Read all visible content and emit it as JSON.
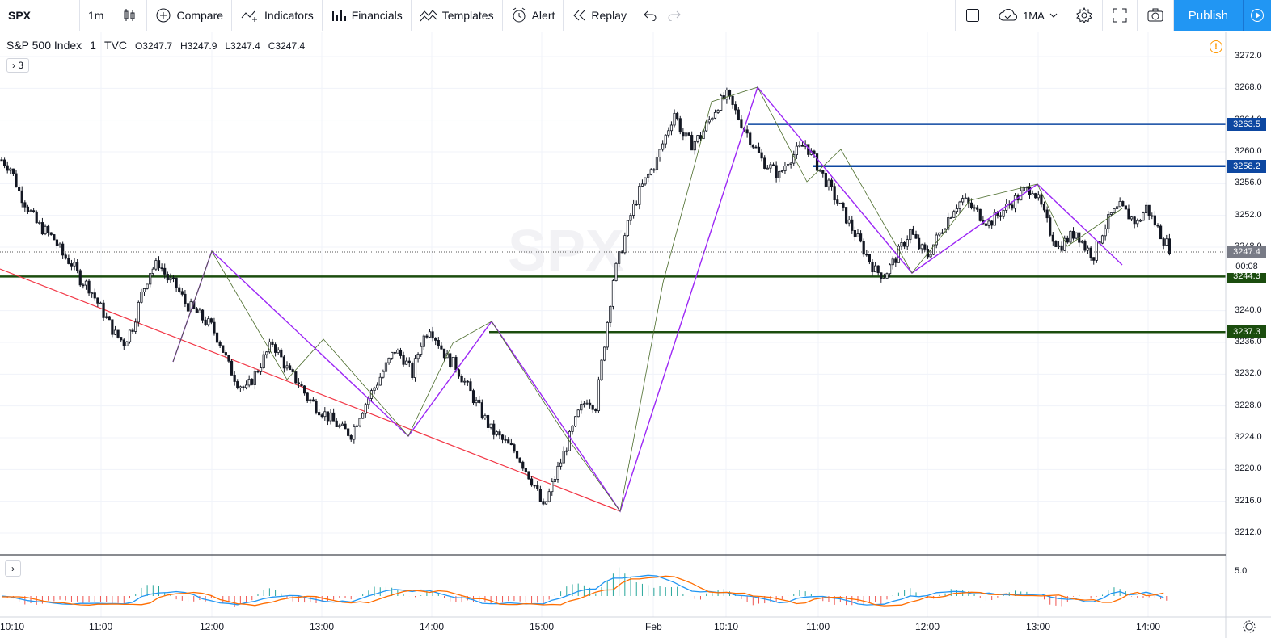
{
  "toolbar": {
    "symbol": "SPX",
    "interval": "1m",
    "compare": "Compare",
    "indicators": "Indicators",
    "financials": "Financials",
    "templates": "Templates",
    "alert": "Alert",
    "replay": "Replay",
    "ma_label": "1MA",
    "publish": "Publish"
  },
  "legend": {
    "name": "S&P 500 Index",
    "interval": "1",
    "exchange": "TVC",
    "open": "O3247.7",
    "high": "H3247.9",
    "low": "L3247.4",
    "close": "C3247.4",
    "collapsed_count": "3"
  },
  "price_axis": {
    "ticks": [
      "3272.0",
      "3268.0",
      "3264.0",
      "3260.0",
      "3256.0",
      "3252.0",
      "3248.0",
      "3244.0",
      "3240.0",
      "3236.0",
      "3232.0",
      "3228.0",
      "3224.0",
      "3220.0",
      "3216.0",
      "3212.0"
    ],
    "last_price": "3247.4",
    "countdown": "00:08",
    "level_tags": [
      {
        "value": "3263.5",
        "color": "#0d47a1"
      },
      {
        "value": "3258.2",
        "color": "#0d47a1"
      },
      {
        "value": "3244.3",
        "color": "#1b4d0e"
      },
      {
        "value": "3237.3",
        "color": "#1b4d0e"
      }
    ],
    "indicator_tick": "5.0"
  },
  "time_axis": [
    "10:10",
    "11:00",
    "12:00",
    "13:00",
    "14:00",
    "15:00",
    "Feb",
    "10:10",
    "11:00",
    "12:00",
    "13:00",
    "14:00"
  ],
  "colors": {
    "blue_level": "#0d47a1",
    "green_level": "#1b4d0e",
    "zigzag": "#9c27f5",
    "trend": "#f23645",
    "publish": "#2196f3"
  },
  "chart_data": {
    "type": "candlestick",
    "ylim": [
      3210,
      3274
    ],
    "horizontal_levels": [
      3263.5,
      3258.2,
      3244.3,
      3237.3
    ],
    "zigzag": [
      {
        "t": "11:40",
        "p": 3234
      },
      {
        "t": "12:00",
        "p": 3245
      },
      {
        "t": "13:50",
        "p": 3224.5
      },
      {
        "t": "14:35",
        "p": 3238.5
      },
      {
        "t": "15:45",
        "p": 3214.5
      },
      {
        "t": "10:35",
        "p": 3264
      },
      {
        "t": "11:50",
        "p": 3244.5
      },
      {
        "t": "13:00",
        "p": 3255.5
      },
      {
        "t": "13:45",
        "p": 3246
      }
    ],
    "trendline": [
      {
        "t": "10:10",
        "p": 3246
      },
      {
        "t": "15:45",
        "p": 3215
      }
    ],
    "close_path": [
      3259,
      3258,
      3255,
      3253,
      3251,
      3250,
      3249,
      3247,
      3246,
      3244,
      3243,
      3241,
      3239,
      3237,
      3236,
      3238,
      3242,
      3245,
      3246,
      3244,
      3243,
      3241,
      3240,
      3239,
      3238,
      3236,
      3233,
      3231,
      3230,
      3232,
      3234,
      3236,
      3234,
      3232,
      3231,
      3229,
      3228,
      3227,
      3226,
      3225,
      3224.5,
      3227,
      3229,
      3231,
      3233,
      3235,
      3234,
      3232,
      3236,
      3238,
      3236,
      3234,
      3233,
      3231,
      3229,
      3227,
      3225,
      3224,
      3223,
      3222,
      3220,
      3218,
      3215,
      3218,
      3221,
      3224,
      3227,
      3229,
      3228,
      3236,
      3244,
      3248,
      3252,
      3255,
      3257,
      3259,
      3262,
      3265,
      3262,
      3261,
      3262,
      3264,
      3266,
      3267,
      3265,
      3263,
      3261,
      3259,
      3258,
      3257,
      3259,
      3260,
      3261,
      3259,
      3257,
      3255,
      3253,
      3251,
      3249,
      3247,
      3245,
      3244.5,
      3246,
      3248,
      3250,
      3248,
      3247,
      3249,
      3251,
      3253,
      3254,
      3253,
      3252,
      3251,
      3252,
      3253,
      3254,
      3255,
      3255.5,
      3253,
      3250,
      3248,
      3249,
      3250,
      3248,
      3247,
      3250,
      3252,
      3253,
      3252,
      3251,
      3253,
      3251,
      3249,
      3247.4
    ]
  }
}
